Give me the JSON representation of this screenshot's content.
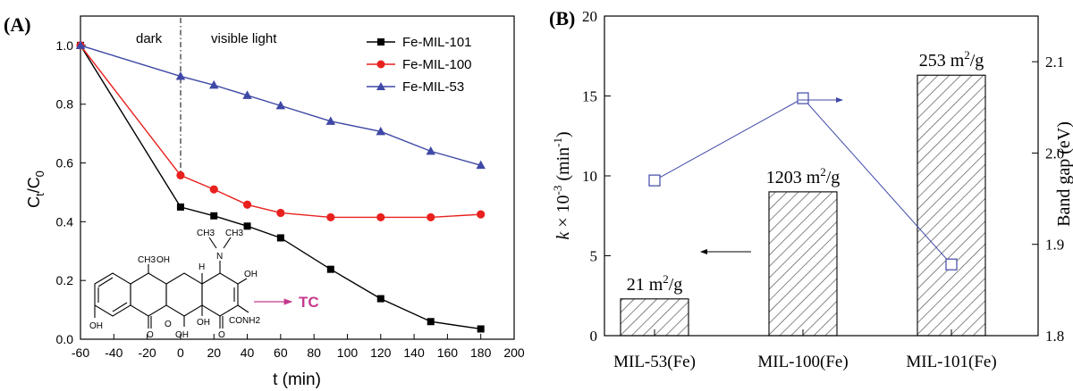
{
  "panels": {
    "a": {
      "label": "(A)"
    },
    "b": {
      "label": "(B)"
    }
  },
  "chart_data": [
    {
      "type": "line",
      "panel": "(A)",
      "title": "",
      "xlabel": "t (min)",
      "ylabel": "Ct/C0",
      "ylabel_main": "C",
      "ylabel_sub1": "t",
      "ylabel_slash": "/C",
      "ylabel_sub2": "0",
      "xlim": [
        -60,
        200
      ],
      "ylim": [
        0.0,
        1.1
      ],
      "xticks": [
        "-60",
        "-40",
        "-20",
        "0",
        "20",
        "40",
        "60",
        "80",
        "100",
        "120",
        "140",
        "160",
        "180",
        "200"
      ],
      "yticks": [
        "0.0",
        "0.2",
        "0.4",
        "0.6",
        "0.8",
        "1.0"
      ],
      "x": [
        -60,
        0,
        20,
        40,
        60,
        90,
        120,
        150,
        180
      ],
      "series": [
        {
          "name": "Fe-MIL-101",
          "color": "#000000",
          "marker": "square",
          "values": [
            1.0,
            0.45,
            0.42,
            0.385,
            0.345,
            0.238,
            0.138,
            0.06,
            0.035
          ]
        },
        {
          "name": "Fe-MIL-100",
          "color": "#e8211e",
          "marker": "circle",
          "values": [
            1.0,
            0.558,
            0.51,
            0.458,
            0.43,
            0.415,
            0.415,
            0.415,
            0.425
          ]
        },
        {
          "name": "Fe-MIL-53",
          "color": "#3f48a6",
          "marker": "triangle",
          "values": [
            1.0,
            0.895,
            0.865,
            0.83,
            0.795,
            0.742,
            0.707,
            0.64,
            0.592
          ]
        }
      ],
      "annotations": {
        "dark": "dark",
        "visible_light": "visible light",
        "divider_x": 0
      },
      "legend_position": "top-right",
      "grid": false,
      "molecule": {
        "label": "TC",
        "label_color": "#c43a8c",
        "atoms": [
          "CH3",
          "OH",
          "H",
          "N",
          "CH3",
          "CH3",
          "OH",
          "OH",
          "OH",
          "OH",
          "CONH2"
        ],
        "oxygens": [
          "O",
          "O",
          "O"
        ]
      }
    },
    {
      "type": "bar",
      "panel": "(B)",
      "title": "",
      "categories": [
        "MIL-53(Fe)",
        "MIL-100(Fe)",
        "MIL-101(Fe)"
      ],
      "values": [
        2.3,
        9.0,
        16.3
      ],
      "bar_label_values": [
        "21",
        "1203",
        "253"
      ],
      "bar_label_unit": " m",
      "bar_label_sup": "2",
      "bar_label_tail": "/g",
      "ylabel_left": "k × 10-3 (min-1)",
      "ylabel_left_k": "k",
      "ylabel_left_times": " × 10",
      "ylabel_left_exp": "-3",
      "ylabel_left_unit": " (min",
      "ylabel_left_unit_exp": "-1",
      "ylabel_left_close": ")",
      "ylim_left": [
        0,
        20
      ],
      "yticks_left": [
        "0",
        "5",
        "10",
        "15",
        "20"
      ],
      "ylabel_right": "Band gap (eV)",
      "ylim_right": [
        1.8,
        2.15
      ],
      "yticks_right": [
        "1.8",
        "1.9",
        "2.0",
        "2.1"
      ],
      "line_series": {
        "name": "",
        "axis": "right",
        "color": "#3f48a6",
        "marker": "open-square",
        "values": [
          1.97,
          2.06,
          1.878
        ]
      },
      "bar_pattern": "hatched",
      "grid": false
    }
  ]
}
